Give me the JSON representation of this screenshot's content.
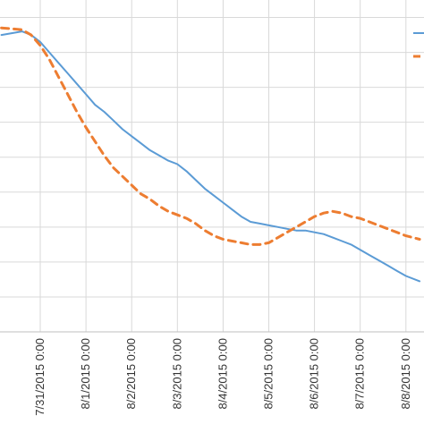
{
  "chart_data": {
    "type": "line",
    "grid": true,
    "legend_position": "right",
    "x_tick_labels": [
      "7/31/2015 0:00",
      "8/1/2015 0:00",
      "8/2/2015 0:00",
      "8/3/2015 0:00",
      "8/4/2015 0:00",
      "8/5/2015 0:00",
      "8/6/2015 0:00",
      "8/7/2015 0:00",
      "8/8/2015 0:00"
    ],
    "x_range_days": [
      -0.85,
      8.3
    ],
    "y_range": [
      0,
      9.5
    ],
    "series": [
      {
        "color": "#5b9bd5",
        "style": "solid",
        "points": [
          [
            -0.85,
            8.5
          ],
          [
            -0.4,
            8.6
          ],
          [
            -0.2,
            8.5
          ],
          [
            0.0,
            8.3
          ],
          [
            0.2,
            8.0
          ],
          [
            0.4,
            7.7
          ],
          [
            0.6,
            7.4
          ],
          [
            0.8,
            7.1
          ],
          [
            1.0,
            6.8
          ],
          [
            1.2,
            6.5
          ],
          [
            1.4,
            6.3
          ],
          [
            1.6,
            6.05
          ],
          [
            1.8,
            5.8
          ],
          [
            2.0,
            5.6
          ],
          [
            2.2,
            5.4
          ],
          [
            2.4,
            5.2
          ],
          [
            2.6,
            5.05
          ],
          [
            2.8,
            4.9
          ],
          [
            3.0,
            4.8
          ],
          [
            3.2,
            4.6
          ],
          [
            3.4,
            4.35
          ],
          [
            3.6,
            4.1
          ],
          [
            3.8,
            3.9
          ],
          [
            4.0,
            3.7
          ],
          [
            4.2,
            3.5
          ],
          [
            4.4,
            3.3
          ],
          [
            4.6,
            3.15
          ],
          [
            4.8,
            3.1
          ],
          [
            5.0,
            3.05
          ],
          [
            5.2,
            3.0
          ],
          [
            5.4,
            2.95
          ],
          [
            5.6,
            2.9
          ],
          [
            5.8,
            2.9
          ],
          [
            6.0,
            2.85
          ],
          [
            6.2,
            2.8
          ],
          [
            6.4,
            2.7
          ],
          [
            6.6,
            2.6
          ],
          [
            6.8,
            2.5
          ],
          [
            7.0,
            2.35
          ],
          [
            7.2,
            2.2
          ],
          [
            7.4,
            2.05
          ],
          [
            7.6,
            1.9
          ],
          [
            7.8,
            1.75
          ],
          [
            8.0,
            1.6
          ],
          [
            8.3,
            1.45
          ]
        ]
      },
      {
        "color": "#ed7d31",
        "style": "dashed",
        "points": [
          [
            -0.85,
            8.7
          ],
          [
            -0.4,
            8.65
          ],
          [
            -0.2,
            8.5
          ],
          [
            0.0,
            8.2
          ],
          [
            0.2,
            7.8
          ],
          [
            0.4,
            7.3
          ],
          [
            0.6,
            6.8
          ],
          [
            0.8,
            6.3
          ],
          [
            1.0,
            5.85
          ],
          [
            1.2,
            5.45
          ],
          [
            1.4,
            5.05
          ],
          [
            1.6,
            4.7
          ],
          [
            1.8,
            4.45
          ],
          [
            2.0,
            4.2
          ],
          [
            2.2,
            3.95
          ],
          [
            2.4,
            3.8
          ],
          [
            2.6,
            3.6
          ],
          [
            2.8,
            3.45
          ],
          [
            3.0,
            3.35
          ],
          [
            3.2,
            3.25
          ],
          [
            3.4,
            3.1
          ],
          [
            3.6,
            2.9
          ],
          [
            3.8,
            2.75
          ],
          [
            4.0,
            2.65
          ],
          [
            4.2,
            2.6
          ],
          [
            4.4,
            2.55
          ],
          [
            4.6,
            2.5
          ],
          [
            4.8,
            2.5
          ],
          [
            5.0,
            2.55
          ],
          [
            5.2,
            2.7
          ],
          [
            5.4,
            2.85
          ],
          [
            5.6,
            3.0
          ],
          [
            5.8,
            3.15
          ],
          [
            6.0,
            3.3
          ],
          [
            6.2,
            3.4
          ],
          [
            6.4,
            3.45
          ],
          [
            6.6,
            3.4
          ],
          [
            6.8,
            3.3
          ],
          [
            7.0,
            3.25
          ],
          [
            7.2,
            3.15
          ],
          [
            7.4,
            3.05
          ],
          [
            7.6,
            2.95
          ],
          [
            7.8,
            2.85
          ],
          [
            8.0,
            2.75
          ],
          [
            8.3,
            2.65
          ]
        ]
      }
    ]
  }
}
